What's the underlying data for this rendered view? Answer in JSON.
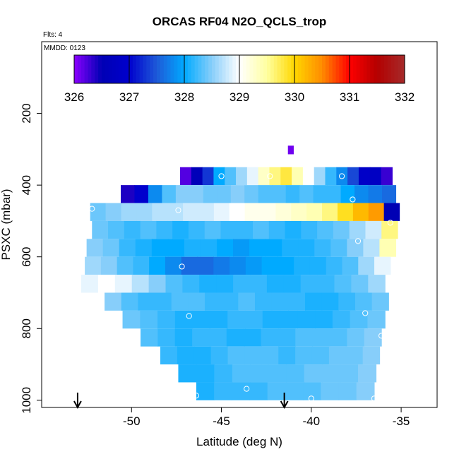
{
  "chart_data": {
    "type": "heatmap",
    "title": "ORCAS RF04 N2O_QCLS_trop",
    "flights_label": "Flts: 4",
    "date_label": "MMDD: 0123",
    "xlabel": "Latitude (deg N)",
    "ylabel": "PSXC (mbar)",
    "xlim": [
      -55,
      -33
    ],
    "ylim": [
      1020,
      0
    ],
    "x_ticks": [
      "-50",
      "-45",
      "-40",
      "-35"
    ],
    "y_ticks": [
      "200",
      "400",
      "600",
      "800",
      "1000"
    ],
    "colorbar": {
      "min": 326,
      "max": 332,
      "labels": [
        "326",
        "327",
        "328",
        "329",
        "330",
        "331",
        "332"
      ],
      "colors": [
        "#8b00ff",
        "#0000b4",
        "#0000cd",
        "#1e5ad8",
        "#00aaff",
        "#87cefa",
        "#ffffff",
        "#ffffa0",
        "#ffd700",
        "#ff8c00",
        "#ff0000",
        "#b40000",
        "#a52a2a"
      ]
    },
    "rows": [
      {
        "p": 315,
        "x0": -41.3,
        "x1": -41.0,
        "values": [
          326.1
        ]
      },
      {
        "p": 375,
        "x0": -47.3,
        "x1": -35.5,
        "values": [
          326.2,
          326.6,
          327.3,
          328.0,
          328.3,
          328.6,
          328.9,
          329.3,
          329.6,
          329.8,
          329.4,
          329.0,
          328.6,
          328.2,
          327.8,
          327.4,
          326.9,
          326.8,
          326.3
        ]
      },
      {
        "p": 425,
        "x0": -50.6,
        "x1": -35.3,
        "values": [
          326.4,
          327.0,
          327.8,
          328.3,
          328.5,
          328.5,
          328.4,
          328.4,
          328.5,
          328.4,
          328.3,
          328.3,
          328.2,
          328.3,
          328.2,
          328.2,
          328.0,
          327.8,
          327.7,
          327.6
        ]
      },
      {
        "p": 475,
        "x0": -52.3,
        "x1": -35.1,
        "values": [
          328.4,
          328.5,
          328.6,
          328.6,
          328.7,
          328.7,
          328.8,
          328.8,
          328.9,
          329.0,
          329.1,
          329.1,
          329.2,
          329.3,
          329.4,
          329.6,
          329.9,
          330.2,
          330.4,
          326.5
        ]
      },
      {
        "p": 525,
        "x0": -52.2,
        "x1": -35.2,
        "values": [
          328.4,
          328.3,
          328.2,
          328.3,
          328.2,
          328.1,
          328.2,
          328.3,
          328.2,
          328.2,
          328.3,
          328.2,
          328.1,
          328.2,
          328.3,
          328.4,
          328.6,
          328.8,
          329.6
        ]
      },
      {
        "p": 575,
        "x0": -52.5,
        "x1": -35.3,
        "values": [
          328.5,
          328.4,
          328.2,
          328.1,
          328.0,
          328.0,
          328.1,
          328.1,
          328.0,
          327.9,
          328.0,
          328.0,
          328.1,
          328.1,
          328.2,
          328.3,
          328.5,
          328.7,
          329.4
        ]
      },
      {
        "p": 625,
        "x0": -52.6,
        "x1": -35.6,
        "values": [
          328.6,
          328.5,
          328.3,
          328.2,
          328.0,
          327.8,
          327.6,
          327.6,
          327.7,
          327.8,
          327.9,
          328.0,
          328.0,
          328.1,
          328.1,
          328.2,
          328.3,
          328.6,
          328.9
        ]
      },
      {
        "p": 675,
        "x0": -52.8,
        "x1": -35.9,
        "values": [
          328.9,
          329.0,
          328.9,
          328.7,
          328.5,
          328.3,
          328.2,
          328.1,
          328.1,
          328.2,
          328.2,
          328.1,
          328.1,
          328.2,
          328.2,
          328.3,
          328.4,
          328.6
        ]
      },
      {
        "p": 725,
        "x0": -51.5,
        "x1": -35.7,
        "values": [
          328.5,
          328.3,
          328.2,
          328.2,
          328.3,
          328.3,
          328.2,
          328.2,
          328.3,
          328.2,
          328.2,
          328.2,
          328.1,
          328.1,
          328.2,
          328.3,
          328.4
        ]
      },
      {
        "p": 775,
        "x0": -50.5,
        "x1": -35.9,
        "values": [
          328.4,
          328.3,
          328.2,
          328.1,
          328.1,
          328.1,
          328.2,
          328.2,
          328.1,
          328.1,
          328.1,
          328.1,
          328.2,
          328.3,
          328.4
        ]
      },
      {
        "p": 825,
        "x0": -49.5,
        "x1": -36.1,
        "values": [
          328.3,
          328.2,
          328.1,
          328.2,
          328.2,
          328.1,
          328.1,
          328.2,
          328.2,
          328.3,
          328.3,
          328.3,
          328.4,
          328.5
        ]
      },
      {
        "p": 875,
        "x0": -48.4,
        "x1": -36.2,
        "values": [
          328.2,
          328.1,
          328.1,
          328.2,
          328.3,
          328.3,
          328.3,
          328.2,
          328.3,
          328.3,
          328.4,
          328.4,
          328.5
        ]
      },
      {
        "p": 925,
        "x0": -47.4,
        "x1": -36.4,
        "values": [
          328.1,
          328.1,
          328.2,
          328.3,
          328.3,
          328.3,
          328.3,
          328.4,
          328.4,
          328.4,
          328.5
        ]
      },
      {
        "p": 975,
        "x0": -46.4,
        "x1": -36.5,
        "values": [
          328.1,
          328.2,
          328.2,
          328.2,
          328.3,
          328.3,
          328.3,
          328.4,
          328.4,
          328.5
        ]
      }
    ],
    "points": [
      {
        "lat": -45.0,
        "p": 375
      },
      {
        "lat": -42.3,
        "p": 375
      },
      {
        "lat": -38.3,
        "p": 375
      },
      {
        "lat": -37.7,
        "p": 440
      },
      {
        "lat": -47.4,
        "p": 470
      },
      {
        "lat": -52.2,
        "p": 466
      },
      {
        "lat": -35.6,
        "p": 505
      },
      {
        "lat": -37.4,
        "p": 556
      },
      {
        "lat": -47.2,
        "p": 627
      },
      {
        "lat": -37.0,
        "p": 757
      },
      {
        "lat": -46.8,
        "p": 765
      },
      {
        "lat": -36.1,
        "p": 820
      },
      {
        "lat": -43.6,
        "p": 968
      },
      {
        "lat": -46.4,
        "p": 987
      },
      {
        "lat": -40.0,
        "p": 995
      },
      {
        "lat": -36.5,
        "p": 995
      }
    ],
    "arrows": [
      -53.0,
      -41.5
    ]
  }
}
